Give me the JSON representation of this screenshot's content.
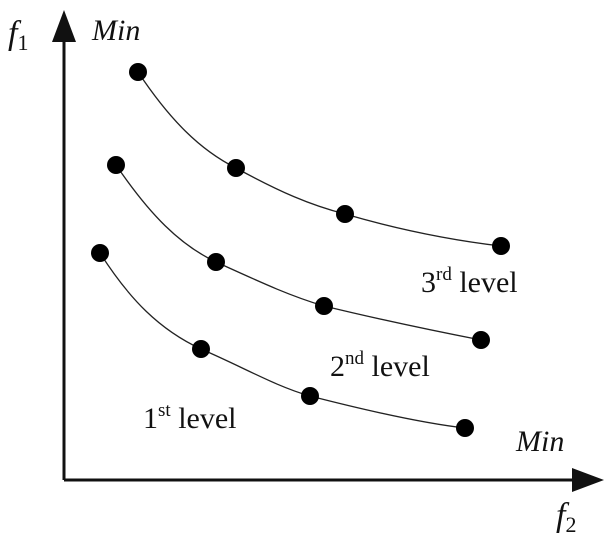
{
  "axes": {
    "y_axis": {
      "symbol": "f",
      "subscript": "1",
      "direction_label": "Min"
    },
    "x_axis": {
      "symbol": "f",
      "subscript": "2",
      "direction_label": "Min"
    }
  },
  "levels": [
    {
      "number": "1",
      "suffix": "st",
      "word": " level"
    },
    {
      "number": "2",
      "suffix": "nd",
      "word": " level"
    },
    {
      "number": "3",
      "suffix": "rd",
      "word": " level"
    }
  ],
  "colors": {
    "ink": "#111111",
    "points": "#000000",
    "background": "#ffffff"
  }
}
